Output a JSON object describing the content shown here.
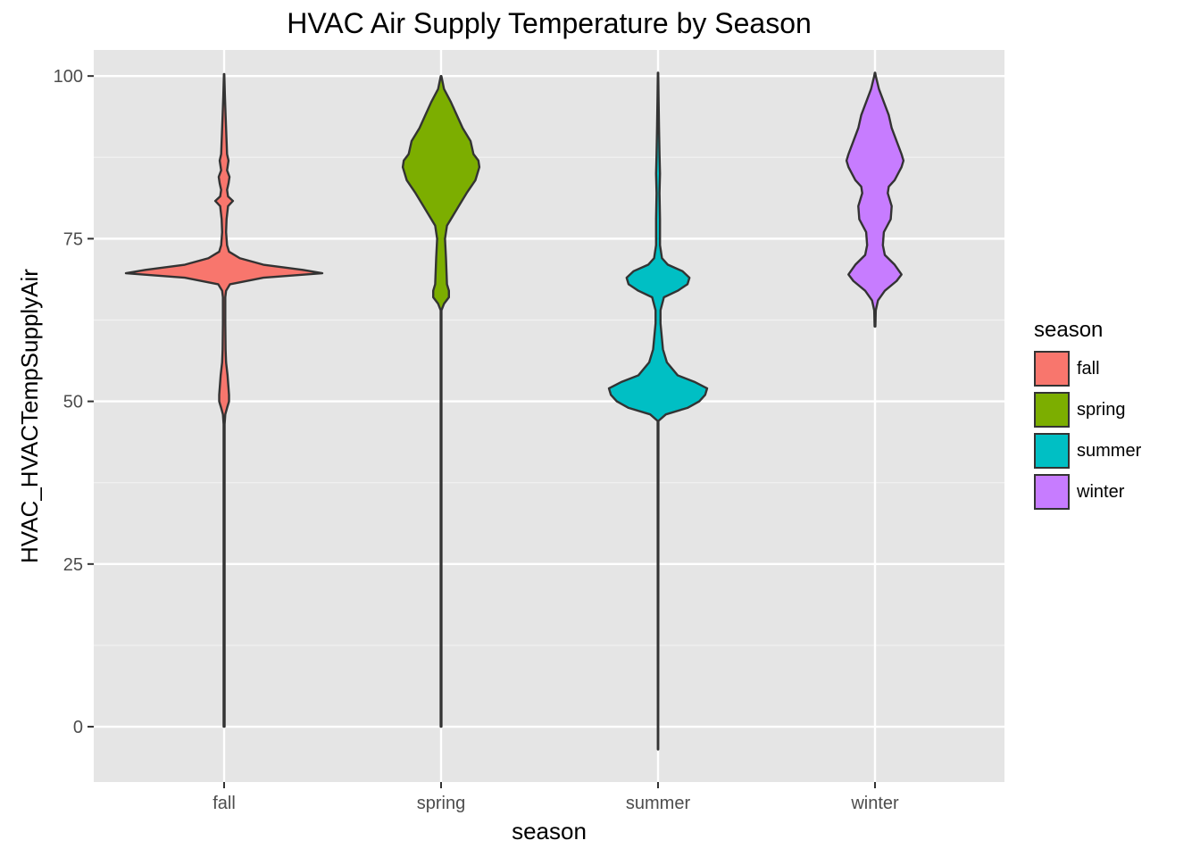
{
  "chart_data": {
    "type": "violin",
    "title": "HVAC Air Supply Temperature by Season",
    "xlabel": "season",
    "ylabel": "HVAC_HVACTempSupplyAir",
    "categories": [
      "fall",
      "spring",
      "summer",
      "winter"
    ],
    "ylim": [
      -8.5,
      104
    ],
    "yticks": [
      0,
      25,
      50,
      75,
      100
    ],
    "grid": true,
    "legend": {
      "title": "season",
      "placement": "right",
      "items": [
        {
          "label": "fall",
          "color": "#F8766D"
        },
        {
          "label": "spring",
          "color": "#7CAE00"
        },
        {
          "label": "summer",
          "color": "#00BFC4"
        },
        {
          "label": "winter",
          "color": "#C77CFF"
        }
      ]
    },
    "series": [
      {
        "category": "fall",
        "color": "#F8766D",
        "min": 0,
        "max": 100.3,
        "density_profile": [
          [
            0,
            0.005
          ],
          [
            46.5,
            0.005
          ],
          [
            48,
            0.012
          ],
          [
            49,
            0.03
          ],
          [
            50,
            0.05
          ],
          [
            51,
            0.05
          ],
          [
            52,
            0.045
          ],
          [
            54,
            0.035
          ],
          [
            56,
            0.02
          ],
          [
            58,
            0.015
          ],
          [
            62,
            0.012
          ],
          [
            66,
            0.012
          ],
          [
            67,
            0.02
          ],
          [
            68,
            0.06
          ],
          [
            69,
            0.4
          ],
          [
            69.7,
            1.0
          ],
          [
            70.2,
            0.8
          ],
          [
            71,
            0.4
          ],
          [
            72,
            0.16
          ],
          [
            73,
            0.05
          ],
          [
            74,
            0.03
          ],
          [
            76,
            0.02
          ],
          [
            78,
            0.025
          ],
          [
            80,
            0.04
          ],
          [
            80.8,
            0.09
          ],
          [
            81.5,
            0.04
          ],
          [
            82.5,
            0.03
          ],
          [
            83.5,
            0.045
          ],
          [
            84.5,
            0.055
          ],
          [
            85.5,
            0.03
          ],
          [
            87,
            0.045
          ],
          [
            88,
            0.03
          ],
          [
            90,
            0.025
          ],
          [
            94,
            0.015
          ],
          [
            97,
            0.008
          ],
          [
            100.3,
            0.002
          ]
        ]
      },
      {
        "category": "spring",
        "color": "#7CAE00",
        "min": 0,
        "max": 100,
        "density_profile": [
          [
            0,
            0.004
          ],
          [
            64,
            0.004
          ],
          [
            65,
            0.03
          ],
          [
            66,
            0.08
          ],
          [
            67,
            0.08
          ],
          [
            68,
            0.06
          ],
          [
            72,
            0.05
          ],
          [
            75,
            0.04
          ],
          [
            77,
            0.06
          ],
          [
            80,
            0.18
          ],
          [
            82,
            0.26
          ],
          [
            84,
            0.35
          ],
          [
            86,
            0.39
          ],
          [
            87,
            0.38
          ],
          [
            88,
            0.33
          ],
          [
            90,
            0.3
          ],
          [
            92,
            0.22
          ],
          [
            94,
            0.16
          ],
          [
            96,
            0.1
          ],
          [
            98,
            0.03
          ],
          [
            100,
            0.003
          ]
        ]
      },
      {
        "category": "summer",
        "color": "#00BFC4",
        "min": -3.5,
        "max": 100.5,
        "density_profile": [
          [
            -3.5,
            0.002
          ],
          [
            47,
            0.004
          ],
          [
            48,
            0.08
          ],
          [
            49,
            0.3
          ],
          [
            50,
            0.42
          ],
          [
            51,
            0.48
          ],
          [
            52,
            0.5
          ],
          [
            53,
            0.37
          ],
          [
            54,
            0.2
          ],
          [
            56,
            0.09
          ],
          [
            58,
            0.05
          ],
          [
            62,
            0.025
          ],
          [
            64,
            0.025
          ],
          [
            66,
            0.06
          ],
          [
            67,
            0.2
          ],
          [
            68,
            0.3
          ],
          [
            69,
            0.32
          ],
          [
            70,
            0.25
          ],
          [
            71,
            0.1
          ],
          [
            72,
            0.04
          ],
          [
            74,
            0.02
          ],
          [
            78,
            0.02
          ],
          [
            82,
            0.015
          ],
          [
            85,
            0.02
          ],
          [
            88,
            0.015
          ],
          [
            92,
            0.01
          ],
          [
            97,
            0.005
          ],
          [
            100.5,
            0.002
          ]
        ]
      },
      {
        "category": "winter",
        "color": "#C77CFF",
        "min": 61.5,
        "max": 100.5,
        "density_profile": [
          [
            61.5,
            0.004
          ],
          [
            64,
            0.008
          ],
          [
            65.5,
            0.03
          ],
          [
            67,
            0.1
          ],
          [
            68.5,
            0.22
          ],
          [
            69.5,
            0.27
          ],
          [
            71,
            0.2
          ],
          [
            72.5,
            0.1
          ],
          [
            74,
            0.08
          ],
          [
            76,
            0.09
          ],
          [
            78,
            0.16
          ],
          [
            80,
            0.17
          ],
          [
            82,
            0.13
          ],
          [
            83,
            0.14
          ],
          [
            84,
            0.2
          ],
          [
            86,
            0.27
          ],
          [
            87,
            0.29
          ],
          [
            88,
            0.27
          ],
          [
            90,
            0.22
          ],
          [
            92,
            0.17
          ],
          [
            94,
            0.14
          ],
          [
            96,
            0.09
          ],
          [
            98,
            0.04
          ],
          [
            100,
            0.008
          ],
          [
            100.5,
            0.002
          ]
        ]
      }
    ]
  }
}
